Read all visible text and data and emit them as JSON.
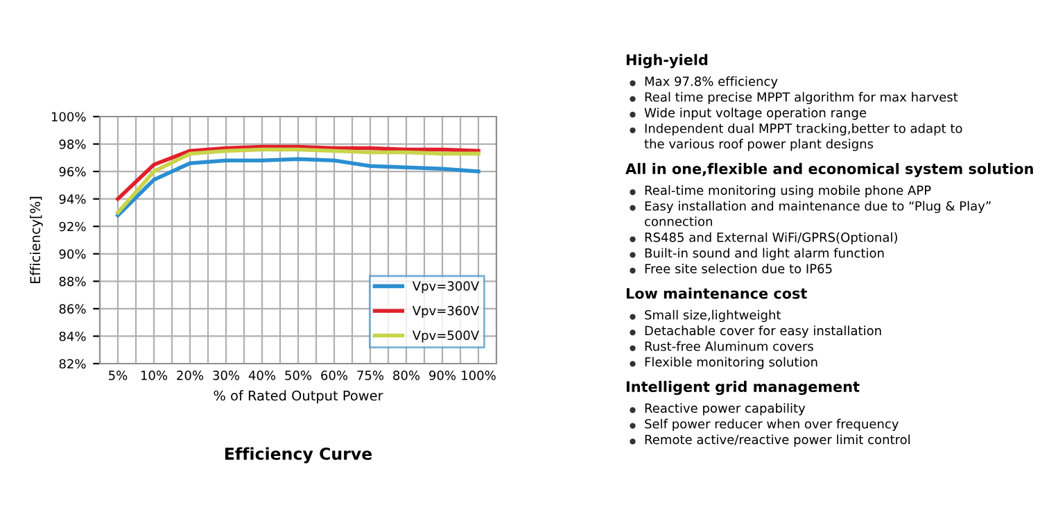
{
  "chart_data": [
    {
      "type": "line",
      "title": "Efficiency Curve",
      "xlabel": "% of Rated Output Power",
      "ylabel": "Efficiency[%]",
      "categories": [
        "5%",
        "10%",
        "20%",
        "30%",
        "40%",
        "50%",
        "60%",
        "75%",
        "80%",
        "90%",
        "100%"
      ],
      "series": [
        {
          "name": "Vpv=300V",
          "color": "#2a8fd0",
          "values": [
            92.8,
            95.4,
            96.6,
            96.8,
            96.8,
            96.9,
            96.8,
            96.4,
            96.3,
            96.2,
            96.0
          ]
        },
        {
          "name": "Vpv=360V",
          "color": "#e0202a",
          "values": [
            94.0,
            96.5,
            97.5,
            97.7,
            97.8,
            97.8,
            97.7,
            97.7,
            97.6,
            97.6,
            97.5
          ]
        },
        {
          "name": "Vpv=500V",
          "color": "#c8d44a",
          "values": [
            93.0,
            96.0,
            97.3,
            97.5,
            97.6,
            97.6,
            97.5,
            97.4,
            97.4,
            97.3,
            97.3
          ]
        }
      ],
      "ylim": [
        82,
        100
      ],
      "yticks": [
        {
          "value": 82,
          "label": "82%"
        },
        {
          "value": 84,
          "label": "84%"
        },
        {
          "value": 86,
          "label": "86%"
        },
        {
          "value": 88,
          "label": "88%"
        },
        {
          "value": 90,
          "label": "90%"
        },
        {
          "value": 92,
          "label": "92%"
        },
        {
          "value": 94,
          "label": "94%"
        },
        {
          "value": 96,
          "label": "96%"
        },
        {
          "value": 98,
          "label": "98%"
        },
        {
          "value": 100,
          "label": "100%"
        }
      ],
      "grid": true,
      "legend": "bottom right"
    },
    {
      "type": "other",
      "title": "High-yield",
      "annotations": [
        "Max 97.8% efficiency",
        "Real time precise MPPT algorithm for max harvest",
        "Wide input voltage operation range",
        "Independent dual MPPT tracking,better to adapt to\nthe various roof power plant designs"
      ]
    },
    {
      "type": "other",
      "title": "All in one,flexible and economical system solution",
      "annotations": [
        "Real-time monitoring using mobile phone APP",
        "Easy installation and maintenance due to “Plug & Play”\nconnection",
        "RS485 and External WiFi/GPRS(Optional)",
        "Built-in sound and light alarm function",
        "Free site selection due to IP65"
      ]
    },
    {
      "type": "other",
      "title": "Low maintenance cost",
      "annotations": [
        "Small size,lightweight",
        "Detachable cover for easy installation",
        "Rust-free Aluminum covers",
        "Flexible monitoring solution"
      ]
    },
    {
      "type": "other",
      "title": "Intelligent grid management",
      "annotations": [
        "Reactive power capability",
        "Self power reducer when over frequency",
        "Remote active/reactive power limit control"
      ]
    }
  ]
}
